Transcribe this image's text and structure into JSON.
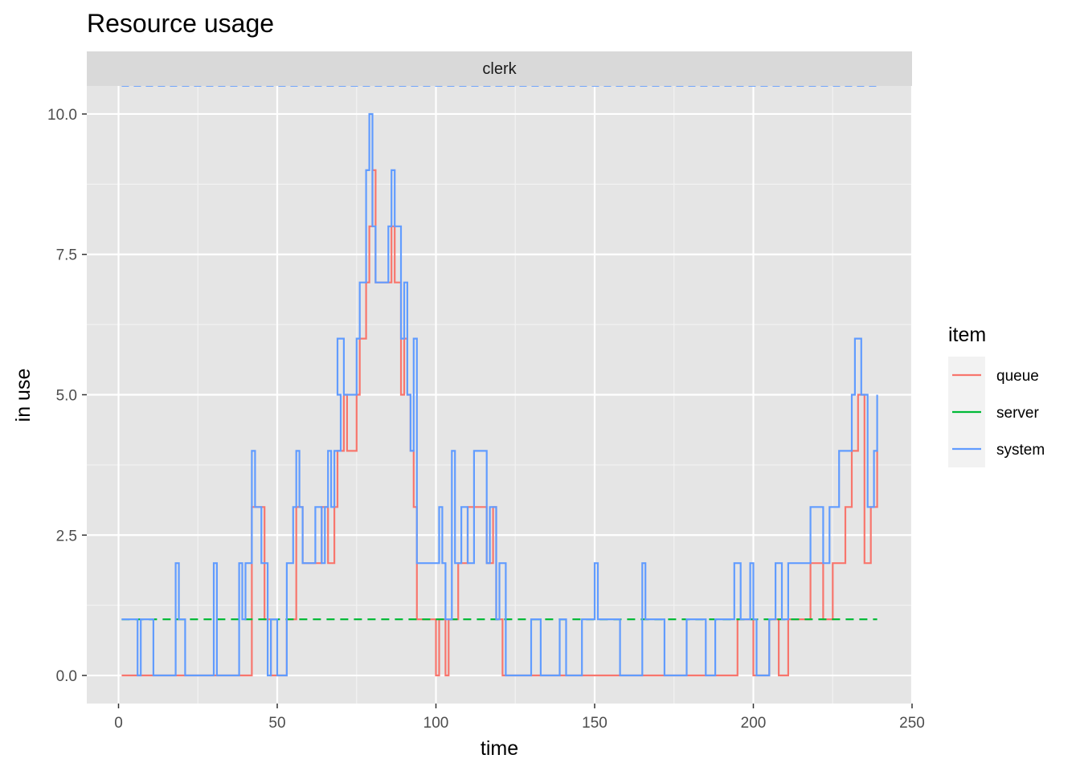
{
  "chart_data": {
    "type": "line",
    "title": "Resource usage",
    "facet": "clerk",
    "xlabel": "time",
    "ylabel": "in use",
    "xlim": [
      -10,
      250
    ],
    "ylim": [
      -0.5,
      10.5
    ],
    "x_ticks": [
      0,
      50,
      100,
      150,
      200,
      250
    ],
    "x_tick_labels": [
      "0",
      "50",
      "100",
      "150",
      "200",
      "250"
    ],
    "y_ticks": [
      0,
      2.5,
      5,
      7.5,
      10
    ],
    "y_tick_labels": [
      "0.0",
      "2.5",
      "5.0",
      "7.5",
      "10.0"
    ],
    "grid": true,
    "background": "#e5e5e5",
    "legend": {
      "title": "item",
      "position": "right",
      "entries": [
        "queue",
        "server",
        "system"
      ]
    },
    "capacity_line": {
      "y": 10.5,
      "x": [
        1,
        239
      ],
      "color": "#619cff",
      "style": "dashed"
    },
    "series": [
      {
        "name": "queue",
        "color": "#f8766d",
        "style": "step",
        "points": [
          [
            1,
            0
          ],
          [
            6,
            0
          ],
          [
            18,
            0
          ],
          [
            29,
            0
          ],
          [
            38,
            0
          ],
          [
            42,
            3
          ],
          [
            44,
            3
          ],
          [
            46,
            1
          ],
          [
            48,
            0
          ],
          [
            53,
            1
          ],
          [
            56,
            3
          ],
          [
            58,
            2
          ],
          [
            62,
            2
          ],
          [
            64,
            3
          ],
          [
            66,
            2
          ],
          [
            68,
            3
          ],
          [
            69,
            4
          ],
          [
            71,
            5
          ],
          [
            72,
            4
          ],
          [
            75,
            5
          ],
          [
            76,
            6
          ],
          [
            78,
            7
          ],
          [
            79,
            8
          ],
          [
            80,
            9
          ],
          [
            81,
            7
          ],
          [
            83,
            7
          ],
          [
            86,
            8
          ],
          [
            87,
            7
          ],
          [
            89,
            5
          ],
          [
            90,
            6
          ],
          [
            91,
            5
          ],
          [
            92,
            4
          ],
          [
            93,
            3
          ],
          [
            94,
            1
          ],
          [
            100,
            0
          ],
          [
            101,
            1
          ],
          [
            103,
            0
          ],
          [
            104,
            1
          ],
          [
            107,
            2
          ],
          [
            110,
            3
          ],
          [
            114,
            3
          ],
          [
            116,
            2
          ],
          [
            118,
            3
          ],
          [
            119,
            1
          ],
          [
            121,
            0
          ],
          [
            150,
            0
          ],
          [
            170,
            0
          ],
          [
            195,
            1
          ],
          [
            200,
            0
          ],
          [
            205,
            1
          ],
          [
            208,
            0
          ],
          [
            211,
            1
          ],
          [
            218,
            2
          ],
          [
            222,
            1
          ],
          [
            225,
            2
          ],
          [
            229,
            3
          ],
          [
            231,
            4
          ],
          [
            233,
            5
          ],
          [
            235,
            2
          ],
          [
            237,
            3
          ],
          [
            239,
            4
          ]
        ]
      },
      {
        "name": "server",
        "color": "#00ba38",
        "style": "step-dashed",
        "points": [
          [
            1,
            1
          ],
          [
            239,
            1
          ]
        ]
      },
      {
        "name": "system",
        "color": "#619cff",
        "style": "step",
        "points": [
          [
            1,
            1
          ],
          [
            6,
            0
          ],
          [
            7,
            1
          ],
          [
            11,
            0
          ],
          [
            18,
            2
          ],
          [
            19,
            1
          ],
          [
            21,
            0
          ],
          [
            30,
            2
          ],
          [
            31,
            0
          ],
          [
            38,
            2
          ],
          [
            39,
            1
          ],
          [
            40,
            2
          ],
          [
            42,
            4
          ],
          [
            43,
            3
          ],
          [
            45,
            2
          ],
          [
            47,
            0
          ],
          [
            48,
            1
          ],
          [
            50,
            0
          ],
          [
            53,
            2
          ],
          [
            55,
            3
          ],
          [
            56,
            4
          ],
          [
            57,
            3
          ],
          [
            58,
            2
          ],
          [
            62,
            3
          ],
          [
            64,
            2
          ],
          [
            65,
            3
          ],
          [
            66,
            4
          ],
          [
            67,
            3
          ],
          [
            68,
            4
          ],
          [
            70,
            5
          ],
          [
            69,
            6
          ],
          [
            71,
            5
          ],
          [
            73,
            5
          ],
          [
            75,
            6
          ],
          [
            76,
            7
          ],
          [
            78,
            9
          ],
          [
            79,
            10
          ],
          [
            80,
            8
          ],
          [
            81,
            7
          ],
          [
            85,
            8
          ],
          [
            86,
            9
          ],
          [
            87,
            8
          ],
          [
            89,
            6
          ],
          [
            90,
            7
          ],
          [
            91,
            5
          ],
          [
            92,
            4
          ],
          [
            93,
            6
          ],
          [
            94,
            2
          ],
          [
            100,
            2
          ],
          [
            101,
            3
          ],
          [
            102,
            2
          ],
          [
            103,
            1
          ],
          [
            105,
            4
          ],
          [
            106,
            2
          ],
          [
            108,
            3
          ],
          [
            110,
            2
          ],
          [
            112,
            4
          ],
          [
            116,
            2
          ],
          [
            117,
            3
          ],
          [
            119,
            1
          ],
          [
            120,
            2
          ],
          [
            122,
            0
          ],
          [
            130,
            1
          ],
          [
            133,
            0
          ],
          [
            139,
            1
          ],
          [
            141,
            0
          ],
          [
            146,
            1
          ],
          [
            150,
            2
          ],
          [
            151,
            1
          ],
          [
            158,
            0
          ],
          [
            165,
            2
          ],
          [
            166,
            1
          ],
          [
            172,
            0
          ],
          [
            179,
            1
          ],
          [
            185,
            0
          ],
          [
            188,
            1
          ],
          [
            194,
            2
          ],
          [
            196,
            1
          ],
          [
            199,
            2
          ],
          [
            200,
            1
          ],
          [
            201,
            0
          ],
          [
            205,
            1
          ],
          [
            207,
            2
          ],
          [
            209,
            1
          ],
          [
            211,
            2
          ],
          [
            213,
            2
          ],
          [
            218,
            3
          ],
          [
            222,
            2
          ],
          [
            224,
            3
          ],
          [
            227,
            4
          ],
          [
            231,
            5
          ],
          [
            232,
            6
          ],
          [
            234,
            5
          ],
          [
            236,
            3
          ],
          [
            238,
            4
          ],
          [
            239,
            5
          ]
        ]
      }
    ]
  }
}
